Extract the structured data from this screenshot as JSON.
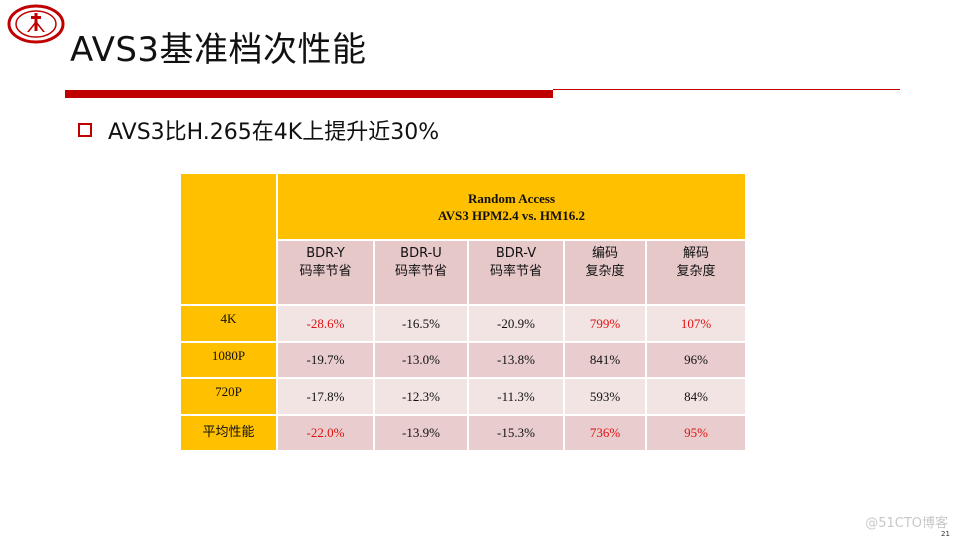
{
  "slide": {
    "title": "AVS3基准档次性能",
    "bullet": "AVS3比H.265在4K上提升近30%",
    "page_number": "21",
    "watermark": "@51CTO博客"
  },
  "logo": {
    "icon": "university-seal-icon",
    "color": "#c00000"
  },
  "table": {
    "header_line1": "Random Access",
    "header_line2": "AVS3 HPM2.4 vs. HM16.2",
    "columns": [
      {
        "line1": "BDR-Y",
        "line2": "码率节省"
      },
      {
        "line1": "BDR-U",
        "line2": "码率节省"
      },
      {
        "line1": "BDR-V",
        "line2": "码率节省"
      },
      {
        "line1": "编码",
        "line2": "复杂度"
      },
      {
        "line1": "解码",
        "line2": "复杂度"
      }
    ],
    "rows": [
      {
        "label": "4K",
        "cells": [
          "-28.6%",
          "-16.5%",
          "-20.9%",
          "799%",
          "107%"
        ]
      },
      {
        "label": "1080P",
        "cells": [
          "-19.7%",
          "-13.0%",
          "-13.8%",
          "841%",
          "96%"
        ]
      },
      {
        "label": "720P",
        "cells": [
          "-17.8%",
          "-12.3%",
          "-11.3%",
          "593%",
          "84%"
        ]
      },
      {
        "label": "平均性能",
        "cells": [
          "-22.0%",
          "-13.9%",
          "-15.3%",
          "736%",
          "95%"
        ]
      }
    ]
  },
  "colors": {
    "accent_red": "#c00000",
    "header_yellow": "#ffc000",
    "highlight_red_text": "#e01010",
    "cell_light": "#f3e4e4",
    "cell_dark": "#e9cdce"
  }
}
